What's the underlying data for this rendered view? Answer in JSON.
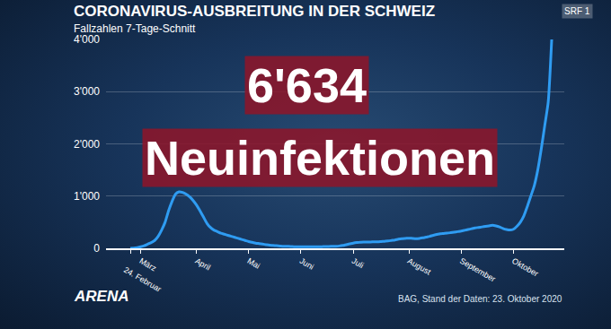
{
  "chart_data": {
    "type": "line",
    "title": "CORONAVIRUS-AUSBREITUNG IN DER SCHWEIZ",
    "subtitle": "Fallzahlen 7-Tage-Schnitt",
    "annotations": [
      "6'634",
      "Neuinfektionen"
    ],
    "source": "BAG, Stand der Daten: 23. Oktober 2020",
    "logo": "ARENA",
    "channel": "SRF 1",
    "categories": [
      "24. Februar",
      null,
      null,
      "März",
      null,
      null,
      null,
      null,
      null,
      null,
      null,
      null,
      null,
      null,
      null,
      null,
      null,
      null,
      null,
      "April",
      null,
      null,
      null,
      null,
      null,
      null,
      null,
      null,
      null,
      null,
      null,
      null,
      null,
      null,
      "Mai",
      null,
      null,
      null,
      null,
      null,
      null,
      null,
      null,
      null,
      null,
      null,
      null,
      null,
      null,
      "Juni",
      null,
      null,
      null,
      null,
      null,
      null,
      null,
      null,
      null,
      null,
      null,
      null,
      null,
      null,
      "Juli",
      null,
      null,
      null,
      null,
      null,
      null,
      null,
      null,
      null,
      null,
      null,
      null,
      null,
      null,
      null,
      "August",
      null,
      null,
      null,
      null,
      null,
      null,
      null,
      null,
      null,
      null,
      null,
      null,
      null,
      null,
      "September",
      null,
      null,
      null,
      null,
      null,
      null,
      null,
      null,
      null,
      null,
      null,
      null,
      null,
      null,
      "Oktober",
      null,
      null,
      null,
      null,
      null,
      null,
      null,
      null,
      null,
      null,
      null
    ],
    "values": [
      0,
      5,
      15,
      30,
      50,
      80,
      110,
      150,
      230,
      350,
      500,
      720,
      900,
      1040,
      1080,
      1070,
      1040,
      990,
      920,
      830,
      720,
      600,
      480,
      400,
      350,
      320,
      290,
      270,
      250,
      230,
      210,
      190,
      170,
      150,
      130,
      115,
      100,
      90,
      80,
      70,
      60,
      55,
      50,
      45,
      40,
      38,
      35,
      32,
      30,
      30,
      28,
      28,
      28,
      30,
      30,
      32,
      35,
      35,
      38,
      40,
      45,
      55,
      70,
      85,
      100,
      110,
      115,
      120,
      120,
      120,
      125,
      125,
      130,
      135,
      140,
      150,
      160,
      175,
      185,
      190,
      195,
      190,
      185,
      190,
      200,
      215,
      230,
      250,
      265,
      280,
      285,
      290,
      300,
      310,
      320,
      330,
      345,
      360,
      375,
      390,
      400,
      410,
      420,
      430,
      440,
      430,
      410,
      380,
      360,
      350,
      365,
      420,
      500,
      620,
      800,
      1000,
      1200,
      1500,
      1900,
      2350,
      2800,
      4000
    ],
    "color": "#2f9cf2",
    "ylim": [
      0,
      4000
    ],
    "yticks": [
      0,
      {
        "value": 1000,
        "label": "1'000"
      },
      {
        "value": 2000,
        "label": "2'000"
      },
      {
        "value": 3000,
        "label": "3'000"
      },
      {
        "value": 4000,
        "label": "4'000"
      }
    ],
    "grid": true
  }
}
